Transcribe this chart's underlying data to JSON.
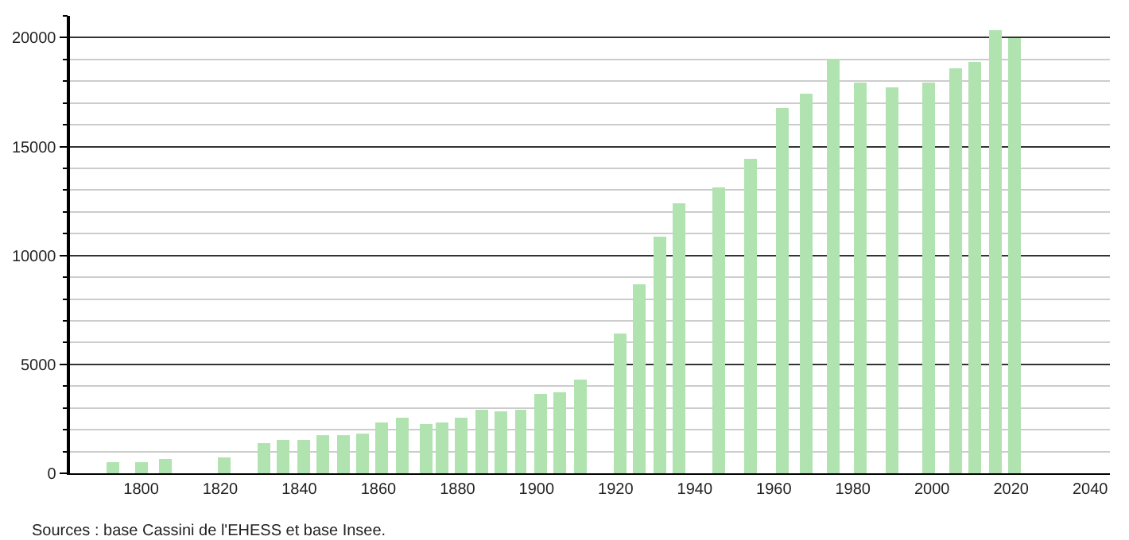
{
  "chart_data": {
    "type": "bar",
    "x": [
      1793,
      1800,
      1806,
      1821,
      1831,
      1836,
      1841,
      1846,
      1851,
      1856,
      1861,
      1866,
      1872,
      1876,
      1881,
      1886,
      1891,
      1896,
      1901,
      1906,
      1911,
      1921,
      1926,
      1931,
      1936,
      1946,
      1954,
      1962,
      1968,
      1975,
      1982,
      1990,
      1999,
      2006,
      2011,
      2016,
      2021
    ],
    "values": [
      530,
      530,
      630,
      720,
      1380,
      1520,
      1520,
      1740,
      1740,
      1810,
      2340,
      2540,
      2250,
      2340,
      2540,
      2920,
      2830,
      2920,
      3620,
      3700,
      4300,
      6450,
      8700,
      10870,
      12400,
      13160,
      14450,
      16740,
      17460,
      19060,
      17970,
      17750,
      17970,
      18620,
      18910,
      20360,
      20000
    ],
    "color": "#b0e3b0",
    "xlim": [
      1782,
      2045
    ],
    "xticks": [
      1800,
      1820,
      1840,
      1860,
      1880,
      1900,
      1920,
      1940,
      1960,
      1980,
      2000,
      2020,
      2040
    ],
    "ylim": [
      0,
      21000
    ],
    "yticks": [
      0,
      {
        "value": 1000,
        "label": null
      },
      {
        "value": 2000,
        "label": null
      },
      {
        "value": 3000,
        "label": null
      },
      {
        "value": 4000,
        "label": null
      },
      5000,
      {
        "value": 6000,
        "label": null
      },
      {
        "value": 7000,
        "label": null
      },
      {
        "value": 8000,
        "label": null
      },
      {
        "value": 9000,
        "label": null
      },
      10000,
      {
        "value": 11000,
        "label": null
      },
      {
        "value": 12000,
        "label": null
      },
      {
        "value": 13000,
        "label": null
      },
      {
        "value": 14000,
        "label": null
      },
      15000,
      {
        "value": 16000,
        "label": null
      },
      {
        "value": 17000,
        "label": null
      },
      {
        "value": 18000,
        "label": null
      },
      {
        "value": 19000,
        "label": null
      },
      20000,
      {
        "value": 21000,
        "label": null
      }
    ],
    "grid": "y",
    "annotations": [
      "Sources : base Cassini de l'EHESS et base Insee."
    ]
  }
}
